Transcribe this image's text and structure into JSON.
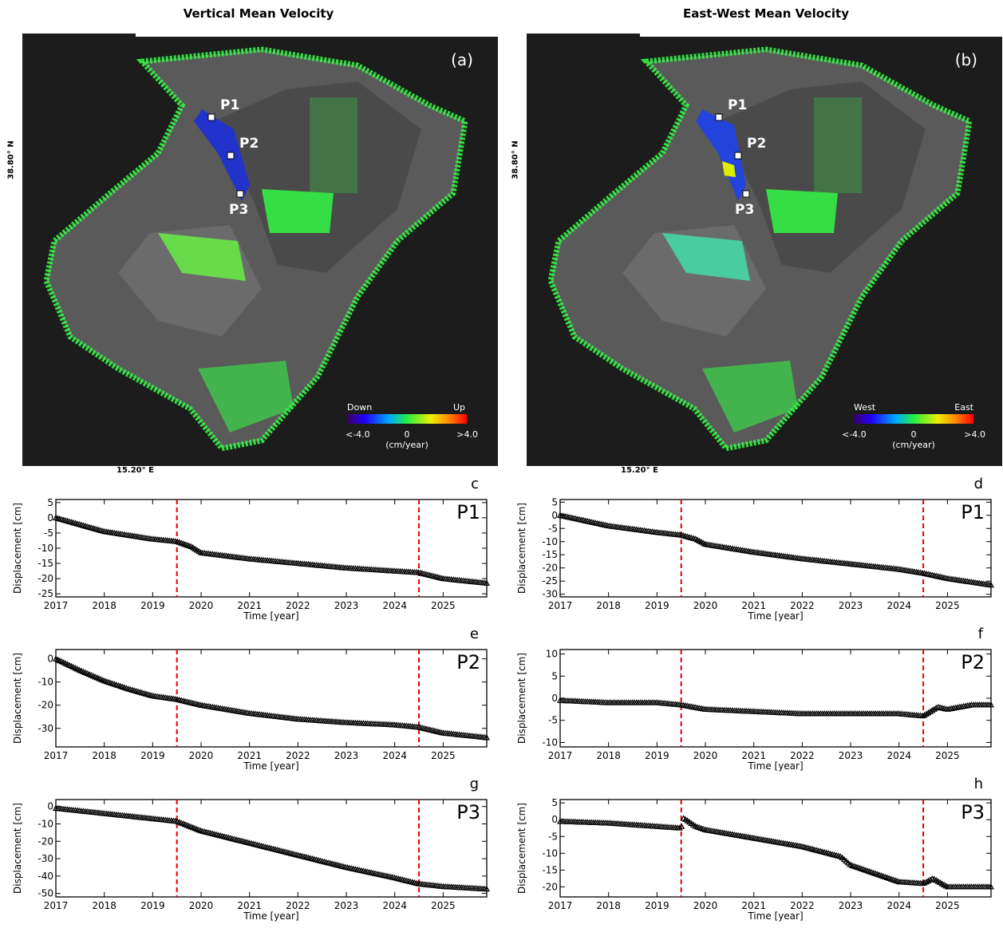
{
  "maps": [
    {
      "id": "a",
      "title": "Vertical Mean Velocity",
      "panel_label": "(a)",
      "lat_label": "38.80° N",
      "lon_label": "15.20° E",
      "points": [
        "P1",
        "P2",
        "P3"
      ],
      "colorbar": {
        "left_label": "Down",
        "right_label": "Up",
        "min_label": "<-4.0",
        "mid_label": "0",
        "max_label": ">4.0",
        "unit": "(cm/year)"
      }
    },
    {
      "id": "b",
      "title": "East-West Mean Velocity",
      "panel_label": "(b)",
      "lat_label": "38.80° N",
      "lon_label": "15.20° E",
      "points": [
        "P1",
        "P2",
        "P3"
      ],
      "colorbar": {
        "left_label": "West",
        "right_label": "East",
        "min_label": "<-4.0",
        "mid_label": "0",
        "max_label": ">4.0",
        "unit": "(cm/year)"
      }
    }
  ],
  "chart_data": [
    {
      "type": "scatter",
      "panel_label": "c",
      "point_label": "P1",
      "xlabel": "Time [year]",
      "ylabel": "Displacement [cm]",
      "xlim": [
        2017,
        2025.9
      ],
      "ylim": [
        -26,
        6
      ],
      "x_ticks": [
        2017,
        2018,
        2019,
        2020,
        2021,
        2022,
        2023,
        2024,
        2025
      ],
      "y_ticks": [
        5,
        0,
        -5,
        -10,
        -15,
        -20,
        -25
      ],
      "event_lines": [
        2019.5,
        2024.5
      ],
      "series": [
        {
          "x": [
            2017,
            2018,
            2019,
            2019.5,
            2019.8,
            2020,
            2021,
            2022,
            2023,
            2024,
            2024.5,
            2025,
            2025.9
          ],
          "y": [
            0,
            -4.5,
            -7,
            -7.8,
            -9.5,
            -11.5,
            -13.5,
            -15,
            -16.5,
            -17.5,
            -18,
            -20,
            -21.5
          ]
        }
      ]
    },
    {
      "type": "scatter",
      "panel_label": "d",
      "point_label": "P1",
      "xlabel": "Time [year]",
      "ylabel": "Displacement [cm]",
      "xlim": [
        2017,
        2025.9
      ],
      "ylim": [
        -31,
        6
      ],
      "x_ticks": [
        2017,
        2018,
        2019,
        2020,
        2021,
        2022,
        2023,
        2024,
        2025
      ],
      "y_ticks": [
        5,
        0,
        -5,
        -10,
        -15,
        -20,
        -25,
        -30
      ],
      "event_lines": [
        2019.5,
        2024.5
      ],
      "series": [
        {
          "x": [
            2017,
            2018,
            2019,
            2019.5,
            2019.8,
            2020,
            2021,
            2022,
            2023,
            2024,
            2024.5,
            2025,
            2025.9
          ],
          "y": [
            0,
            -4,
            -6.5,
            -7.5,
            -9,
            -11,
            -14,
            -16.5,
            -18.5,
            -20.5,
            -22,
            -24,
            -26.5
          ]
        }
      ]
    },
    {
      "type": "scatter",
      "panel_label": "e",
      "point_label": "P2",
      "xlabel": "Time [year]",
      "ylabel": "Displacement [cm]",
      "xlim": [
        2017,
        2025.9
      ],
      "ylim": [
        -38,
        4
      ],
      "x_ticks": [
        2017,
        2018,
        2019,
        2020,
        2021,
        2022,
        2023,
        2024,
        2025
      ],
      "y_ticks": [
        0,
        -10,
        -20,
        -30
      ],
      "event_lines": [
        2019.5,
        2024.5
      ],
      "series": [
        {
          "x": [
            2017,
            2017.5,
            2018,
            2018.5,
            2019,
            2019.5,
            2020,
            2021,
            2022,
            2023,
            2024,
            2024.5,
            2025,
            2025.9
          ],
          "y": [
            0,
            -5,
            -9.5,
            -13,
            -16,
            -17.5,
            -20,
            -23.5,
            -26,
            -27.5,
            -28.5,
            -29.5,
            -32,
            -34
          ]
        }
      ]
    },
    {
      "type": "scatter",
      "panel_label": "f",
      "point_label": "P2",
      "xlabel": "Time [year]",
      "ylabel": "Displacement [cm]",
      "xlim": [
        2017,
        2025.9
      ],
      "ylim": [
        -11,
        11
      ],
      "x_ticks": [
        2017,
        2018,
        2019,
        2020,
        2021,
        2022,
        2023,
        2024,
        2025
      ],
      "y_ticks": [
        10,
        5,
        0,
        -5,
        -10
      ],
      "event_lines": [
        2019.5,
        2024.5
      ],
      "series": [
        {
          "x": [
            2017,
            2018,
            2019,
            2019.5,
            2020,
            2021,
            2022,
            2023,
            2024,
            2024.5,
            2024.8,
            2025,
            2025.5,
            2025.9
          ],
          "y": [
            -0.5,
            -1,
            -1,
            -1.5,
            -2.5,
            -3,
            -3.5,
            -3.5,
            -3.5,
            -4,
            -2,
            -2.5,
            -1.5,
            -1.5
          ]
        }
      ]
    },
    {
      "type": "scatter",
      "panel_label": "g",
      "point_label": "P3",
      "xlabel": "Time [year]",
      "ylabel": "Displacement [cm]",
      "xlim": [
        2017,
        2025.9
      ],
      "ylim": [
        -52,
        4
      ],
      "x_ticks": [
        2017,
        2018,
        2019,
        2020,
        2021,
        2022,
        2023,
        2024,
        2025
      ],
      "y_ticks": [
        0,
        -10,
        -20,
        -30,
        -40,
        -50
      ],
      "event_lines": [
        2019.5,
        2024.5
      ],
      "series": [
        {
          "x": [
            2017,
            2018,
            2019,
            2019.5,
            2020,
            2021,
            2022,
            2023,
            2024,
            2024.5,
            2025,
            2025.9
          ],
          "y": [
            -1,
            -4,
            -7,
            -8.5,
            -14,
            -21,
            -28,
            -35,
            -41,
            -44.5,
            -46,
            -47.5
          ]
        }
      ]
    },
    {
      "type": "scatter",
      "panel_label": "h",
      "point_label": "P3",
      "xlabel": "Time [year]",
      "ylabel": "Displacement [cm]",
      "xlim": [
        2017,
        2025.9
      ],
      "ylim": [
        -23,
        6
      ],
      "x_ticks": [
        2017,
        2018,
        2019,
        2020,
        2021,
        2022,
        2023,
        2024,
        2025
      ],
      "y_ticks": [
        5,
        0,
        -5,
        -10,
        -15,
        -20
      ],
      "event_lines": [
        2019.5,
        2024.5
      ],
      "series": [
        {
          "x": [
            2017,
            2018,
            2019,
            2019.5,
            2019.55,
            2019.8,
            2020,
            2021,
            2022,
            2022.8,
            2023,
            2024,
            2024.5,
            2024.7,
            2025,
            2025.9
          ],
          "y": [
            -0.5,
            -1,
            -2,
            -2.5,
            0.5,
            -2,
            -3,
            -5.5,
            -8,
            -11,
            -13.5,
            -18.5,
            -19,
            -17.5,
            -20,
            -20
          ]
        }
      ]
    }
  ]
}
